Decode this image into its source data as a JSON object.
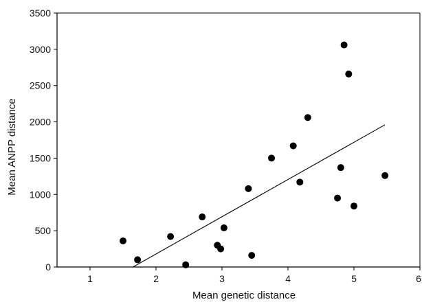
{
  "chart_data": {
    "type": "scatter",
    "title": "",
    "xlabel": "Mean genetic distance",
    "ylabel": "Mean ANPP distance",
    "xlim": [
      0.5,
      6
    ],
    "ylim": [
      0,
      3500
    ],
    "x_ticks": [
      1,
      2,
      3,
      4,
      5,
      6
    ],
    "y_ticks": [
      0,
      500,
      1000,
      1500,
      2000,
      2500,
      3000,
      3500
    ],
    "grid": false,
    "legend": "none",
    "marker_color": "#000000",
    "series": [
      {
        "points": [
          {
            "x": 1.5,
            "y": 360
          },
          {
            "x": 1.72,
            "y": 100
          },
          {
            "x": 2.22,
            "y": 420
          },
          {
            "x": 2.45,
            "y": 30
          },
          {
            "x": 2.7,
            "y": 690
          },
          {
            "x": 2.93,
            "y": 300
          },
          {
            "x": 2.98,
            "y": 250
          },
          {
            "x": 3.03,
            "y": 540
          },
          {
            "x": 3.4,
            "y": 1080
          },
          {
            "x": 3.45,
            "y": 160
          },
          {
            "x": 3.75,
            "y": 1500
          },
          {
            "x": 4.08,
            "y": 1670
          },
          {
            "x": 4.18,
            "y": 1170
          },
          {
            "x": 4.3,
            "y": 2060
          },
          {
            "x": 4.75,
            "y": 950
          },
          {
            "x": 4.8,
            "y": 1370
          },
          {
            "x": 4.85,
            "y": 3060
          },
          {
            "x": 4.92,
            "y": 2660
          },
          {
            "x": 5.0,
            "y": 840
          },
          {
            "x": 5.47,
            "y": 1260
          }
        ]
      }
    ],
    "trend_line": {
      "type": "linear",
      "x1": 1.65,
      "y1": 0,
      "x2": 5.47,
      "y2": 1960
    }
  }
}
